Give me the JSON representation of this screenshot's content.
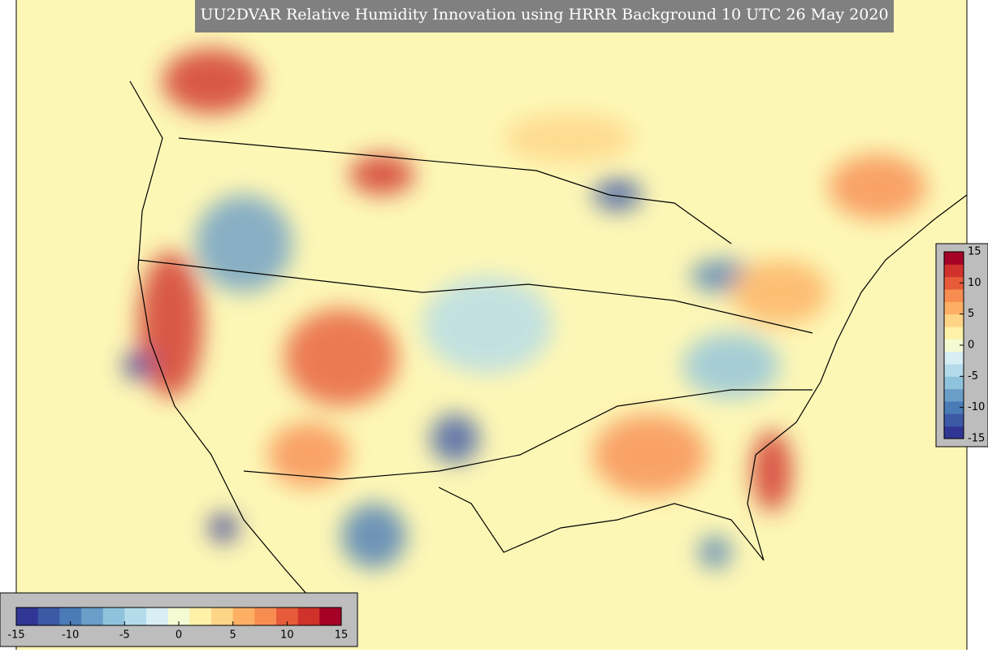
{
  "title": "UU2DVAR Relative Humidity Innovation using HRRR Background 10 UTC 26 May 2020",
  "colorbars": {
    "lim": [
      -15,
      15
    ],
    "colors": [
      "#313695",
      "#3c59a6",
      "#4a7bb7",
      "#6a9dc8",
      "#8fc3dd",
      "#b4dbea",
      "#d8eef5",
      "#f4fbd2",
      "#fff1a8",
      "#fed486",
      "#fdb063",
      "#f88d52",
      "#e75b3a",
      "#d0322b",
      "#a50026"
    ],
    "vertical": {
      "ticks": [
        15,
        10,
        5,
        0,
        -5,
        -10,
        -15
      ]
    },
    "horizontal": {
      "ticks": [
        -15,
        -10,
        -5,
        0,
        5,
        10,
        15
      ]
    }
  }
}
